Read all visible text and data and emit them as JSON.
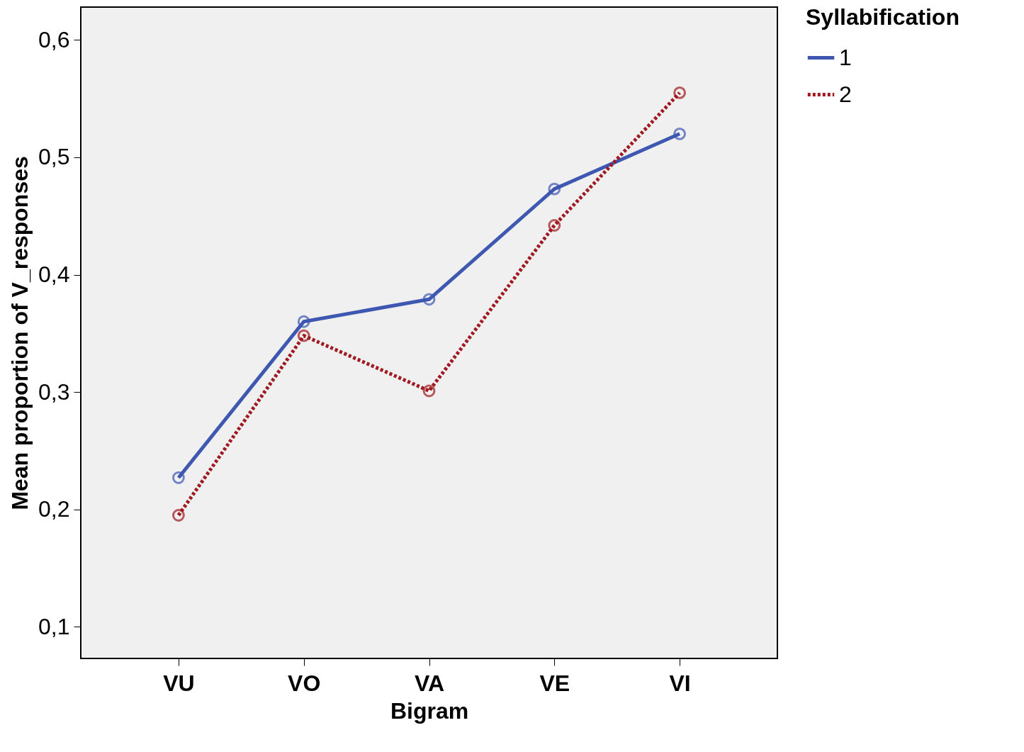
{
  "chart_data": {
    "type": "line",
    "xlabel": "Bigram",
    "ylabel": "Mean proportion of V_responses",
    "legend_title": "Syllabification",
    "categories": [
      "VU",
      "VO",
      "VA",
      "VE",
      "VI"
    ],
    "series": [
      {
        "name": "1",
        "color": "#3e57b0",
        "line_style": "solid",
        "values": [
          0.227,
          0.36,
          0.379,
          0.473,
          0.52
        ]
      },
      {
        "name": "2",
        "color": "#a01820",
        "line_style": "dotted",
        "values": [
          0.195,
          0.348,
          0.301,
          0.442,
          0.555
        ]
      }
    ],
    "ylim": [
      0.073,
      0.628
    ],
    "yticks": [
      {
        "value": 0.1,
        "label": "0,1"
      },
      {
        "value": 0.2,
        "label": "0,2"
      },
      {
        "value": 0.3,
        "label": "0,3"
      },
      {
        "value": 0.4,
        "label": "0,4"
      },
      {
        "value": 0.5,
        "label": "0,5"
      },
      {
        "value": 0.6,
        "label": "0,6"
      }
    ],
    "grid": false,
    "legend": "top right",
    "marker": "circle"
  }
}
